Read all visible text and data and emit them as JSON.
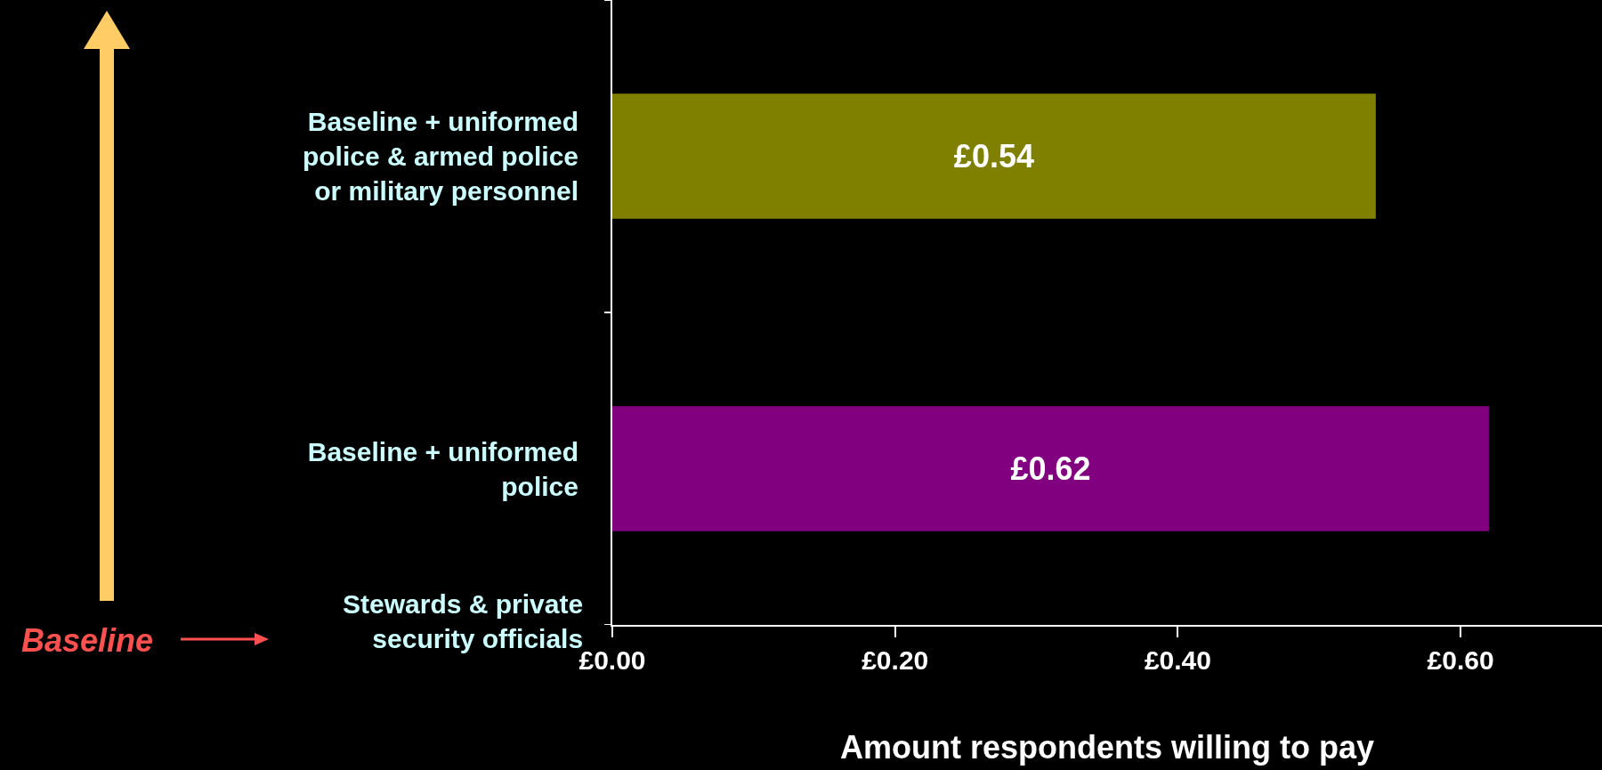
{
  "chart_data": {
    "type": "bar",
    "orientation": "horizontal",
    "xlabel": "Amount respondents willing to pay",
    "categories": [
      "Baseline + uniformed police & armed police or military personnel",
      "Baseline + uniformed police"
    ],
    "values": [
      0.54,
      0.62
    ],
    "colors": [
      "#808000",
      "#800080"
    ],
    "value_labels": [
      "£0.54",
      "£0.62"
    ],
    "xlim": [
      0,
      0.7
    ],
    "xticks": [
      {
        "value": 0,
        "label": "£0.00"
      },
      {
        "value": 0.2,
        "label": "£0.20"
      },
      {
        "value": 0.4,
        "label": "£0.40"
      },
      {
        "value": 0.6,
        "label": "£0.60"
      }
    ],
    "grid": false,
    "legend": false,
    "annotations": [
      "Stewards & private security officials",
      "Baseline"
    ]
  }
}
